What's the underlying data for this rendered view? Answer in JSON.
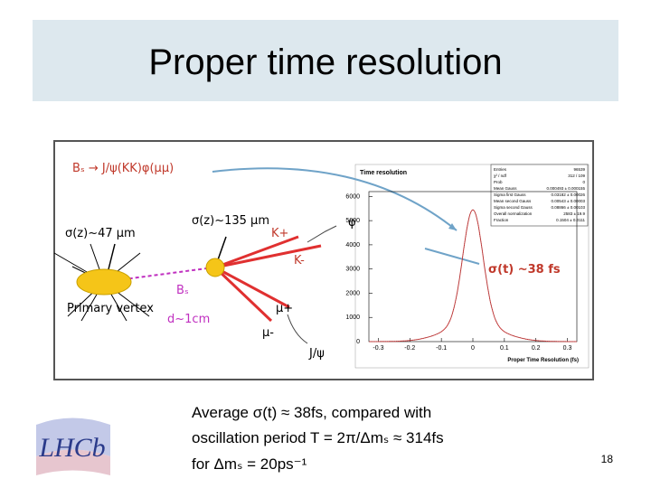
{
  "title": "Proper time resolution",
  "diagram": {
    "decay": "Bₛ → J/ψ(KK)φ(μμ)",
    "sigma_pv": "σ(z)~47 μm",
    "sigma_sv": "σ(z)~135 μm",
    "primary_vertex": "Primary vertex",
    "bs": "Bₛ",
    "distance": "d~1cm",
    "k_plus": "K+",
    "k_minus": "K-",
    "phi": "φ",
    "mu_plus": "μ+",
    "mu_minus": "μ-",
    "jpsi": "J/ψ",
    "sigma_t": "σ(t) ~38 fs"
  },
  "plot": {
    "title": "Time resolution",
    "xlabel": "Proper Time Resolution (fs)",
    "xlim": [
      -0.33,
      0.33
    ],
    "ylim": [
      0,
      6200
    ],
    "xticks": [
      -0.3,
      -0.2,
      -0.1,
      0,
      0.1,
      0.2,
      0.3
    ],
    "yticks": [
      0,
      1000,
      2000,
      3000,
      4000,
      5000,
      6000
    ],
    "stats": [
      [
        "Entries",
        "96539"
      ],
      [
        "χ² / ndf",
        "312 / 109"
      ],
      [
        "Prob",
        "0"
      ],
      [
        "Mean Gauss",
        "0.000493 ± 0.000155"
      ],
      [
        "Sigma first Gauss",
        "0.03182 ± 0.00026"
      ],
      [
        "Mean second Gauss",
        "0.00543 ± 0.00003"
      ],
      [
        "Sigma second Gauss",
        "0.08866 ± 0.00103"
      ],
      [
        "Overall normalization",
        "2583 ± 19.9"
      ],
      [
        "Fraction",
        "0.1504 ± 0.0111"
      ]
    ]
  },
  "text": [
    "Average σ(t) ≈ 38fs, compared with",
    "oscillation period T = 2π/Δmₛ ≈ 314fs",
    "for Δmₛ = 20ps⁻¹"
  ],
  "logo": "LHCb",
  "page_number": "18"
}
